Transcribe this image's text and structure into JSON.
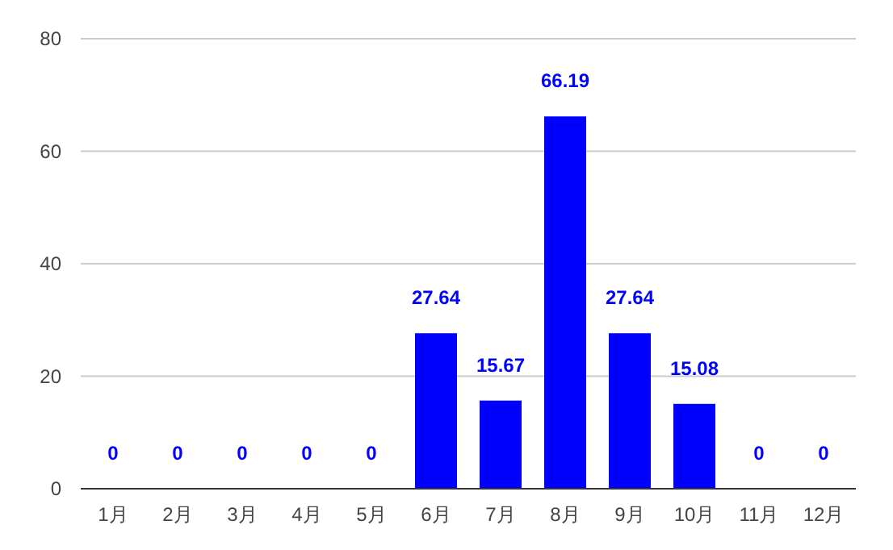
{
  "chart_data": {
    "type": "bar",
    "categories": [
      "1月",
      "2月",
      "3月",
      "4月",
      "5月",
      "6月",
      "7月",
      "8月",
      "9月",
      "10月",
      "11月",
      "12月"
    ],
    "values": [
      0,
      0,
      0,
      0,
      0,
      27.64,
      15.67,
      66.19,
      27.64,
      15.08,
      0,
      0
    ],
    "color": "#0000ff",
    "ylim": [
      0,
      80
    ],
    "yticks": [
      0,
      20,
      40,
      60,
      80
    ],
    "grid": "y",
    "data_labels": true
  }
}
